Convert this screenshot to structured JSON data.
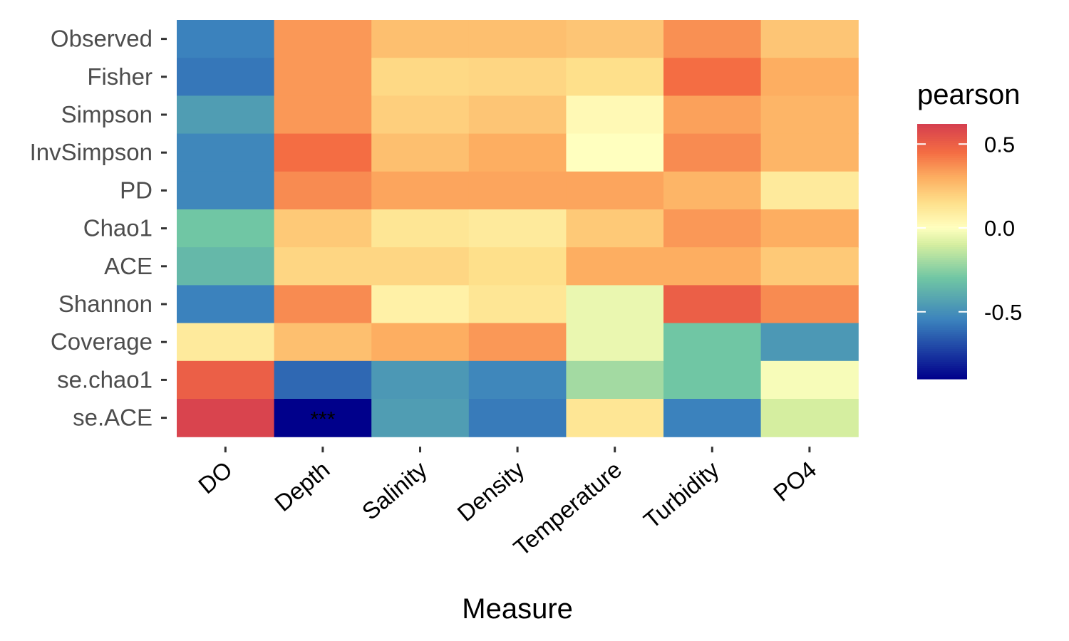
{
  "chart_data": {
    "type": "heatmap",
    "title": "",
    "xlabel": "Measure",
    "ylabel": "",
    "x_categories": [
      "DO",
      "Depth",
      "Salinity",
      "Density",
      "Temperature",
      "Turbidity",
      "PO4"
    ],
    "y_categories": [
      "Observed",
      "Fisher",
      "Simpson",
      "InvSimpson",
      "PD",
      "Chao1",
      "ACE",
      "Shannon",
      "Coverage",
      "se.chao1",
      "se.ACE"
    ],
    "values": [
      [
        -0.55,
        0.35,
        0.25,
        0.25,
        0.23,
        0.37,
        0.23
      ],
      [
        -0.58,
        0.35,
        0.17,
        0.18,
        0.15,
        0.45,
        0.3
      ],
      [
        -0.45,
        0.35,
        0.2,
        0.23,
        0.03,
        0.33,
        0.28
      ],
      [
        -0.53,
        0.45,
        0.25,
        0.3,
        0.0,
        0.38,
        0.28
      ],
      [
        -0.53,
        0.38,
        0.32,
        0.32,
        0.32,
        0.28,
        0.1
      ],
      [
        -0.3,
        0.22,
        0.12,
        0.1,
        0.22,
        0.35,
        0.3
      ],
      [
        -0.35,
        0.18,
        0.18,
        0.15,
        0.3,
        0.3,
        0.22
      ],
      [
        -0.55,
        0.38,
        0.07,
        0.12,
        -0.05,
        0.5,
        0.38
      ],
      [
        0.1,
        0.25,
        0.3,
        0.35,
        -0.05,
        -0.3,
        -0.47
      ],
      [
        0.5,
        -0.62,
        -0.47,
        -0.53,
        -0.2,
        -0.3,
        -0.02
      ],
      [
        0.6,
        -0.9,
        -0.45,
        -0.57,
        0.12,
        -0.55,
        -0.1
      ]
    ],
    "annotations": [
      {
        "row": "se.ACE",
        "col": "Depth",
        "text": "***"
      }
    ],
    "legend": {
      "title": "pearson",
      "position": "right",
      "range": [
        -0.9,
        0.62
      ],
      "ticks": [
        0.5,
        0.0,
        -0.5
      ],
      "tick_labels": [
        "0.5",
        "0.0",
        "-0.5"
      ]
    },
    "grid": false
  }
}
